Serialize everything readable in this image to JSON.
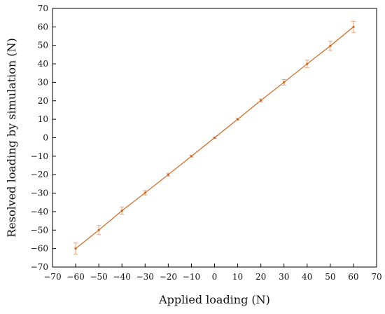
{
  "chart_data": {
    "type": "line",
    "title": "",
    "xlabel": "Applied loading (N)",
    "ylabel": "Resolved loading by simulation (N)",
    "xlim": [
      -70,
      70
    ],
    "ylim": [
      -70,
      70
    ],
    "xticks": [
      -70,
      -60,
      -50,
      -40,
      -30,
      -20,
      -10,
      0,
      10,
      20,
      30,
      40,
      50,
      60,
      70
    ],
    "yticks": [
      -70,
      -60,
      -50,
      -40,
      -30,
      -20,
      -10,
      0,
      10,
      20,
      30,
      40,
      50,
      60,
      70
    ],
    "grid": false,
    "legend": "none",
    "series": [
      {
        "x": [
          -60,
          -50,
          -40,
          -30,
          -20,
          -10,
          0,
          10,
          20,
          30,
          40,
          50,
          60
        ],
        "y": [
          -60,
          -50,
          -39.5,
          -29.8,
          -20,
          -10,
          0,
          10,
          20.2,
          30,
          40,
          49.7,
          60
        ],
        "yerr": [
          3,
          2.5,
          2,
          1.2,
          0.8,
          0.5,
          0.3,
          0.5,
          0.8,
          1.5,
          2,
          2.5,
          3
        ],
        "color": "#d4661c",
        "errorbar_color": "#e8a77a"
      }
    ]
  }
}
